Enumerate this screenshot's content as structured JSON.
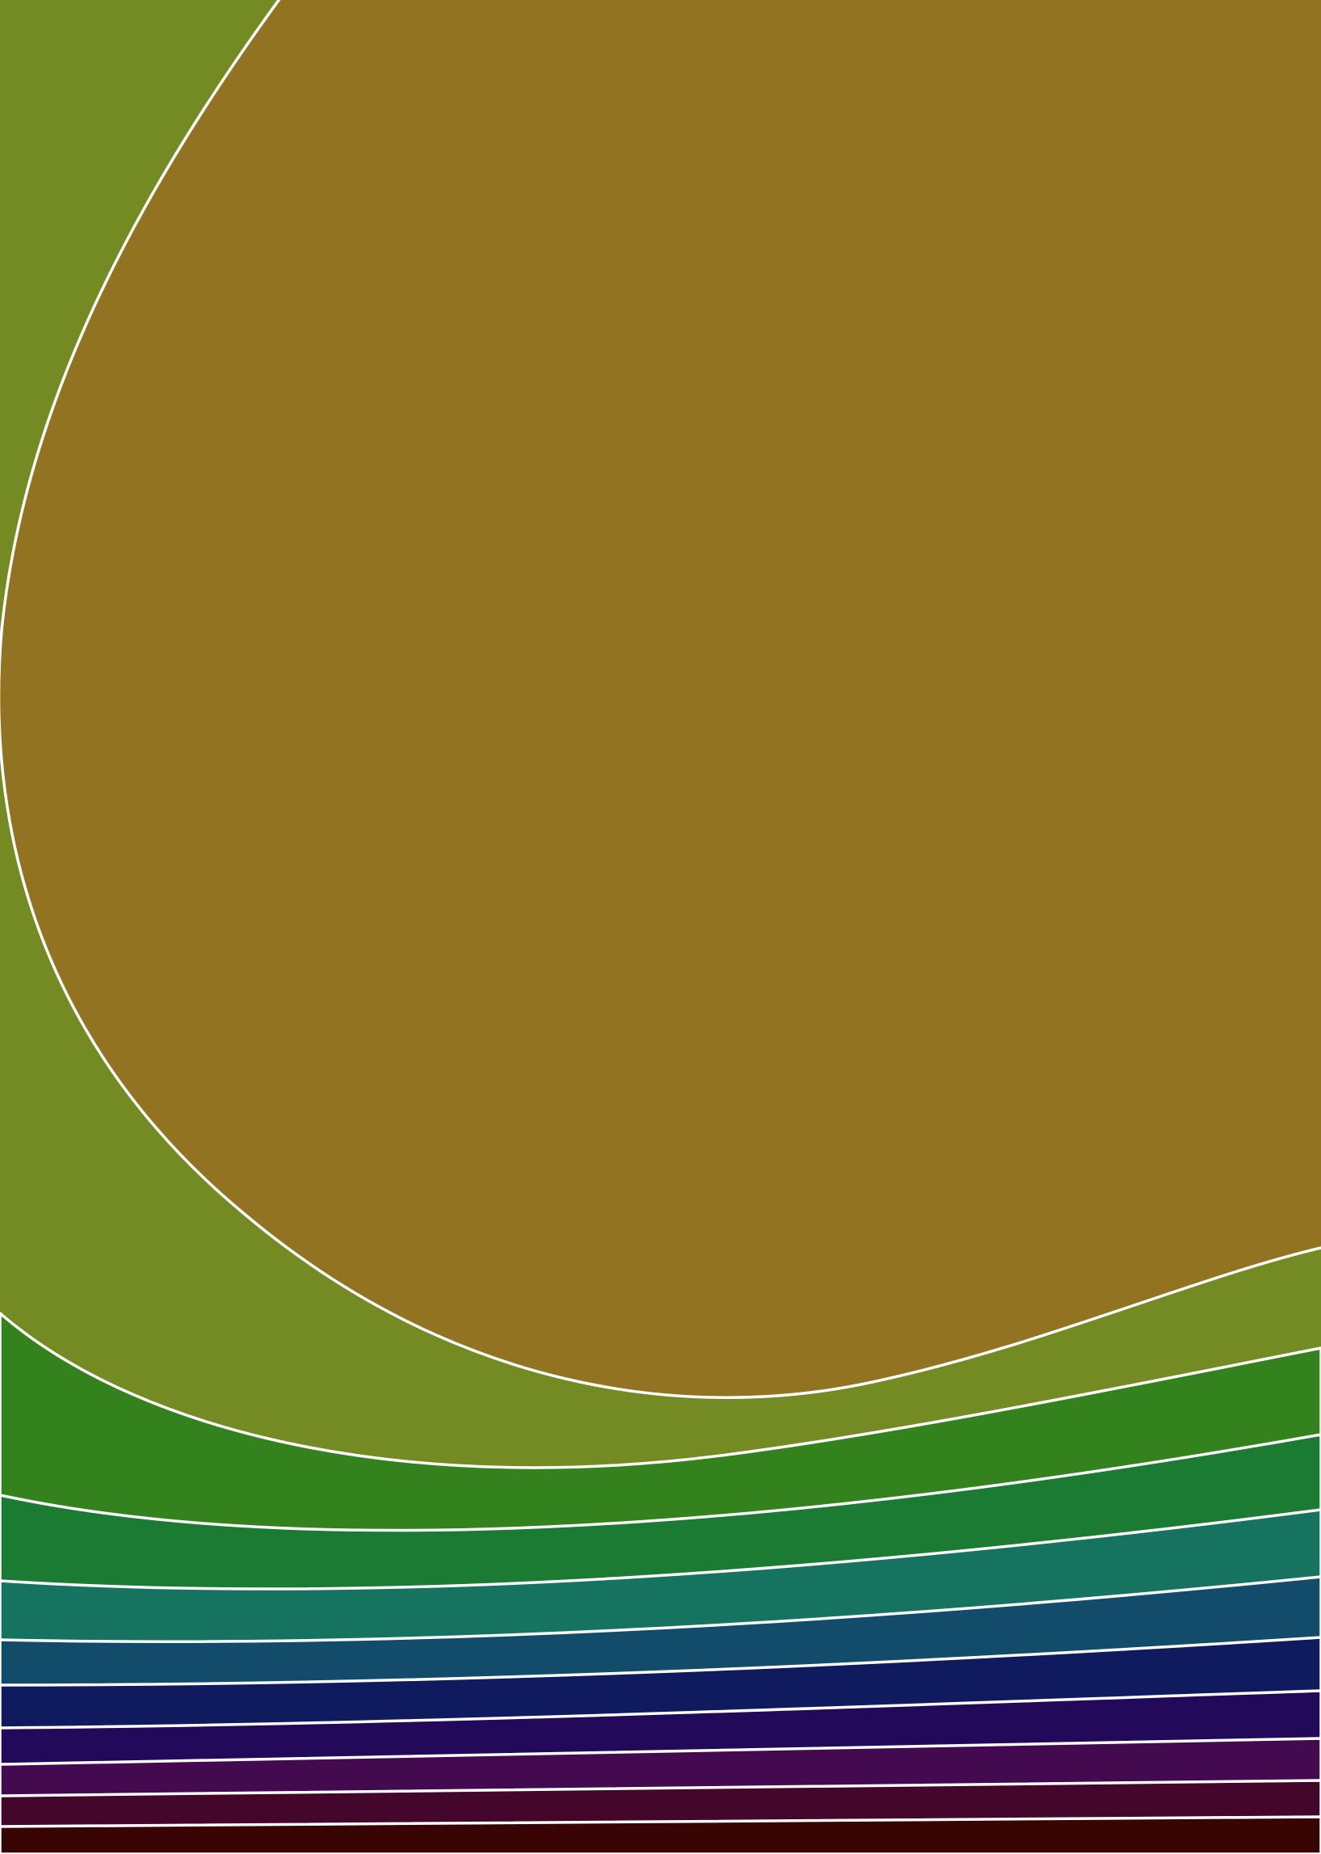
{
  "artwork": {
    "description_colors": {
      "background": "#748a22",
      "blob": "#927322",
      "bands": [
        "#33821e",
        "#1b7b33",
        "#157360",
        "#134c6b",
        "#0f1b5e",
        "#22095a",
        "#430a4f",
        "#45062b",
        "#380404"
      ],
      "line": "#ffffff"
    }
  }
}
